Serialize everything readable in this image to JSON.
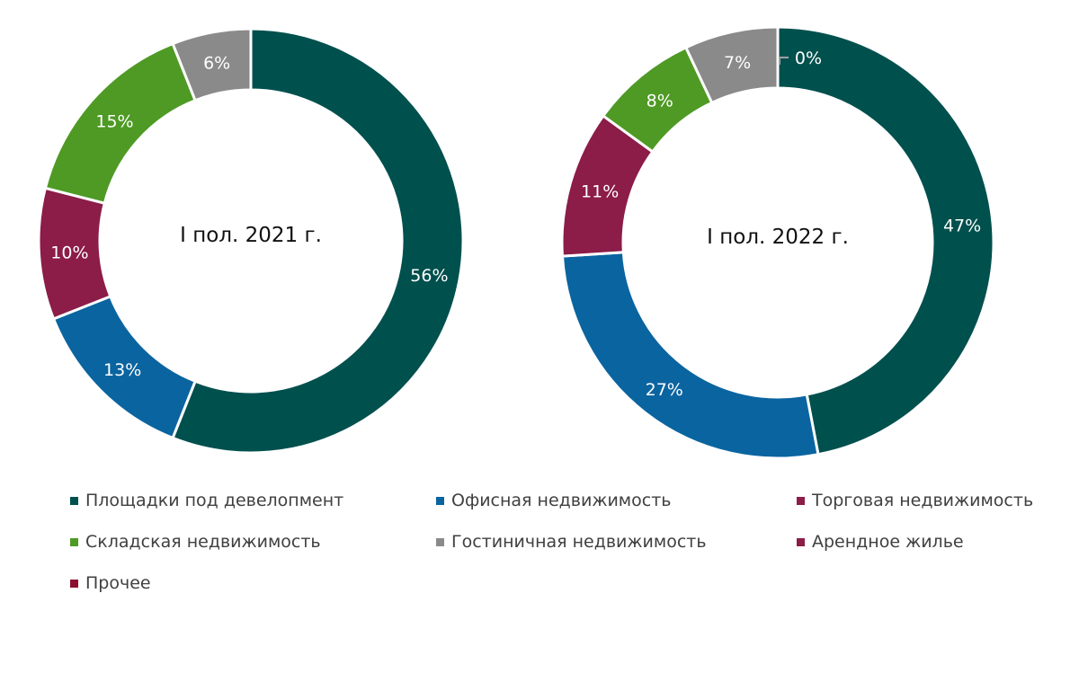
{
  "chart_data": [
    {
      "type": "donut",
      "title": "I пол. 2021 г.",
      "slices": [
        {
          "category": "Площадки под девелопмент",
          "value": 56,
          "label": "56%"
        },
        {
          "category": "Офисная недвижимость",
          "value": 13,
          "label": "13%"
        },
        {
          "category": "Торговая недвижимость",
          "value": 10,
          "label": "10%"
        },
        {
          "category": "Складская недвижимость",
          "value": 15,
          "label": "15%"
        },
        {
          "category": "Гостиничная недвижимость",
          "value": 6,
          "label": "6%"
        }
      ]
    },
    {
      "type": "donut",
      "title": "I пол. 2022 г.",
      "slices": [
        {
          "category": "Площадки под девелопмент",
          "value": 47,
          "label": "47%"
        },
        {
          "category": "Офисная недвижимость",
          "value": 27,
          "label": "27%"
        },
        {
          "category": "Торговая недвижимость",
          "value": 11,
          "label": "11%"
        },
        {
          "category": "Складская недвижимость",
          "value": 8,
          "label": "8%"
        },
        {
          "category": "Гостиничная недвижимость",
          "value": 7,
          "label": "7%"
        },
        {
          "category": "Арендное жилье",
          "value": 0,
          "label": "0%"
        }
      ]
    }
  ],
  "legend": [
    {
      "label": "Площадки под девелопмент",
      "color": "#00504e"
    },
    {
      "label": "Офисная недвижимость",
      "color": "#0a64a0"
    },
    {
      "label": "Торговая недвижимость",
      "color": "#8c1c48"
    },
    {
      "label": "Складская недвижимость",
      "color": "#4e9a24"
    },
    {
      "label": "Гостиничная недвижимость",
      "color": "#8a8a8a"
    },
    {
      "label": "Арендное жилье",
      "color": "#8c1c48"
    },
    {
      "label": "Прочее",
      "color": "#8a1030"
    }
  ]
}
